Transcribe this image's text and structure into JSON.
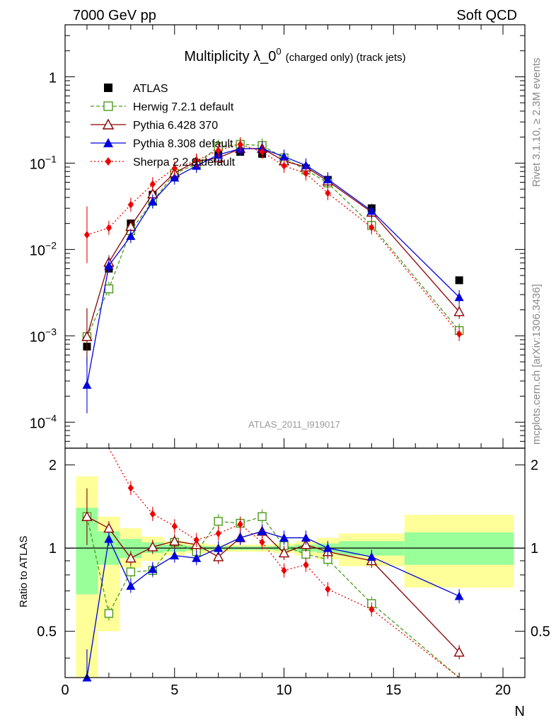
{
  "header": {
    "left": "7000 GeV pp",
    "right": "Soft QCD"
  },
  "side_labels": {
    "top": "Rivet 3.1.10, ≥ 2.3M events",
    "bottom": "mcplots.cern.ch [arXiv:1306.3436]"
  },
  "chart_data": [
    {
      "type": "line",
      "title": "Multiplicity λ_0",
      "title_sup": "0",
      "subtitle": "(charged only) (track jets)",
      "watermark": "ATLAS_2011_I919017",
      "xlim": [
        0,
        21
      ],
      "ylim": [
        5e-05,
        4
      ],
      "yscale": "log",
      "grid": false,
      "legend_position": "top-left",
      "y_ticks": [
        {
          "value": 1,
          "base": "1",
          "exp": ""
        },
        {
          "value": 0.1,
          "base": "10",
          "exp": "−1"
        },
        {
          "value": 0.01,
          "base": "10",
          "exp": "−2"
        },
        {
          "value": 0.001,
          "base": "10",
          "exp": "−3"
        },
        {
          "value": 0.0001,
          "base": "10",
          "exp": "−4"
        }
      ],
      "series": [
        {
          "name": "ATLAS",
          "color": "#000000",
          "marker": "square-filled",
          "line": "none",
          "x": [
            1,
            2,
            3,
            4,
            5,
            6,
            7,
            8,
            9,
            10,
            11,
            12,
            14,
            18
          ],
          "y": [
            0.00075,
            0.006,
            0.02,
            0.043,
            0.072,
            0.1,
            0.124,
            0.135,
            0.128,
            0.112,
            0.087,
            0.064,
            0.03,
            0.0044
          ]
        },
        {
          "name": "Herwig 7.2.1 default",
          "color": "#4a9a1a",
          "marker": "square-open",
          "line": "dashed",
          "x": [
            1,
            2,
            3,
            4,
            5,
            6,
            7,
            8,
            9,
            10,
            11,
            12,
            14,
            18
          ],
          "y": [
            0.00098,
            0.0035,
            0.0165,
            0.036,
            0.076,
            0.097,
            0.155,
            0.165,
            0.16,
            0.115,
            0.083,
            0.059,
            0.019,
            0.00115
          ]
        },
        {
          "name": "Pythia 6.428 370",
          "color": "#8b0000",
          "marker": "triangle-open",
          "line": "solid",
          "x": [
            1,
            2,
            3,
            4,
            5,
            6,
            7,
            8,
            9,
            10,
            11,
            12,
            14,
            18
          ],
          "y": [
            0.00098,
            0.0071,
            0.0185,
            0.044,
            0.077,
            0.105,
            0.115,
            0.147,
            0.148,
            0.106,
            0.09,
            0.062,
            0.027,
            0.0019
          ]
        },
        {
          "name": "Pythia 8.308 default",
          "color": "#0000dd",
          "marker": "triangle-filled",
          "line": "solid",
          "x": [
            1,
            2,
            3,
            4,
            5,
            6,
            7,
            8,
            9,
            10,
            11,
            12,
            14,
            18
          ],
          "y": [
            0.00027,
            0.0065,
            0.0143,
            0.036,
            0.068,
            0.093,
            0.125,
            0.147,
            0.147,
            0.119,
            0.094,
            0.065,
            0.028,
            0.0028
          ]
        },
        {
          "name": "Sherpa 2.2.9 default",
          "color": "#ee0000",
          "marker": "diamond-filled",
          "line": "dotted",
          "x": [
            1,
            2,
            3,
            4,
            5,
            6,
            7,
            8,
            9,
            10,
            11,
            12,
            14,
            18
          ],
          "y": [
            0.0148,
            0.0178,
            0.033,
            0.057,
            0.087,
            0.107,
            0.141,
            0.165,
            0.135,
            0.093,
            0.076,
            0.045,
            0.018,
            0.00105
          ]
        }
      ]
    },
    {
      "type": "line",
      "ylabel": "Ratio to ATLAS",
      "xlabel": "N",
      "xlim": [
        0,
        21
      ],
      "ylim": [
        0.34,
        2.3
      ],
      "yscale": "log",
      "x_ticks": [
        0,
        5,
        10,
        15,
        20
      ],
      "y_ticks": [
        0.5,
        1,
        2
      ],
      "reference_line": 1,
      "uncertainty_bands": [
        {
          "x": [
            0.5,
            1.5
          ],
          "green": [
            0.68,
            1.4
          ],
          "yellow": [
            0.3,
            1.82
          ]
        },
        {
          "x": [
            1.5,
            2.5
          ],
          "green": [
            0.87,
            1.15
          ],
          "yellow": [
            0.5,
            1.3
          ]
        },
        {
          "x": [
            2.5,
            3.5
          ],
          "green": [
            0.92,
            1.08
          ],
          "yellow": [
            0.85,
            1.18
          ]
        },
        {
          "x": [
            3.5,
            4.5
          ],
          "green": [
            0.96,
            1.05
          ],
          "yellow": [
            0.9,
            1.1
          ]
        },
        {
          "x": [
            4.5,
            5.5
          ],
          "green": [
            0.97,
            1.03
          ],
          "yellow": [
            0.94,
            1.06
          ]
        },
        {
          "x": [
            5.5,
            6.5
          ],
          "green": [
            0.98,
            1.02
          ],
          "yellow": [
            0.96,
            1.04
          ]
        },
        {
          "x": [
            6.5,
            7.5
          ],
          "green": [
            0.985,
            1.015
          ],
          "yellow": [
            0.97,
            1.03
          ]
        },
        {
          "x": [
            7.5,
            8.5
          ],
          "green": [
            0.985,
            1.015
          ],
          "yellow": [
            0.97,
            1.03
          ]
        },
        {
          "x": [
            8.5,
            9.5
          ],
          "green": [
            0.985,
            1.015
          ],
          "yellow": [
            0.97,
            1.03
          ]
        },
        {
          "x": [
            9.5,
            10.5
          ],
          "green": [
            0.98,
            1.02
          ],
          "yellow": [
            0.96,
            1.04
          ]
        },
        {
          "x": [
            10.5,
            11.5
          ],
          "green": [
            0.97,
            1.03
          ],
          "yellow": [
            0.94,
            1.06
          ]
        },
        {
          "x": [
            11.5,
            12.5
          ],
          "green": [
            0.96,
            1.04
          ],
          "yellow": [
            0.91,
            1.09
          ]
        },
        {
          "x": [
            12.5,
            15.5
          ],
          "green": [
            0.94,
            1.06
          ],
          "yellow": [
            0.86,
            1.13
          ]
        },
        {
          "x": [
            15.5,
            20.5
          ],
          "green": [
            0.87,
            1.14
          ],
          "yellow": [
            0.72,
            1.32
          ]
        }
      ],
      "series": [
        {
          "name": "Herwig 7.2.1 default",
          "color": "#4a9a1a",
          "marker": "square-open",
          "line": "dashed",
          "x": [
            1,
            2,
            3,
            4,
            5,
            6,
            7,
            8,
            9,
            10,
            11,
            12,
            14,
            18
          ],
          "y": [
            1.3,
            0.58,
            0.82,
            0.83,
            1.05,
            0.97,
            1.25,
            1.23,
            1.3,
            1.02,
            0.95,
            0.91,
            0.63,
            0.26
          ]
        },
        {
          "name": "Pythia 6.428 370",
          "color": "#8b0000",
          "marker": "triangle-open",
          "line": "solid",
          "x": [
            1,
            2,
            3,
            4,
            5,
            6,
            7,
            8,
            9,
            10,
            11,
            12,
            14,
            18
          ],
          "y": [
            1.3,
            1.18,
            0.92,
            1.01,
            1.06,
            1.03,
            0.93,
            1.09,
            1.15,
            0.96,
            1.03,
            0.97,
            0.9,
            0.42
          ]
        },
        {
          "name": "Pythia 8.308 default",
          "color": "#0000dd",
          "marker": "triangle-filled",
          "line": "solid",
          "x": [
            1,
            2,
            3,
            4,
            5,
            6,
            7,
            8,
            9,
            10,
            11,
            12,
            14,
            18
          ],
          "y": [
            0.34,
            1.08,
            0.73,
            0.84,
            0.94,
            0.92,
            1.0,
            1.09,
            1.15,
            1.09,
            1.09,
            1.0,
            0.93,
            0.67
          ]
        },
        {
          "name": "Sherpa 2.2.9 default",
          "color": "#ee0000",
          "marker": "diamond-filled",
          "line": "dotted",
          "x": [
            2,
            3,
            4,
            5,
            6,
            7,
            8,
            9,
            10,
            11,
            12,
            14,
            18
          ],
          "y": [
            3.0,
            1.65,
            1.33,
            1.2,
            1.07,
            1.13,
            1.22,
            1.05,
            0.83,
            0.87,
            0.71,
            0.6,
            0.24
          ]
        }
      ]
    }
  ]
}
